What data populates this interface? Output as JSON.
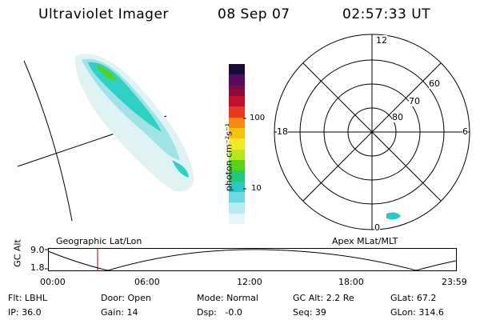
{
  "header": {
    "instrument": "Ultraviolet Imager",
    "date": "08 Sep 07",
    "time": "02:57:33 UT"
  },
  "colorbar": {
    "unit_label": "photon cm⁻²s⁻¹",
    "ticks": [
      "100",
      "10"
    ],
    "colors": [
      "#1a0b3a",
      "#5a0a5e",
      "#8a0a3a",
      "#c0102a",
      "#e63a1a",
      "#f58a10",
      "#f7c20c",
      "#f1ea24",
      "#b6e61d",
      "#55d317",
      "#21c97d",
      "#28c8c8",
      "#71d8e1",
      "#b8eaf0",
      "#e6f6f7"
    ]
  },
  "polar": {
    "mlt_labels": {
      "top": "12",
      "left": "18",
      "right": "6",
      "bottom": "0"
    },
    "lat_labels": [
      "60",
      "70",
      "80"
    ]
  },
  "timeline": {
    "left_title": "Geographic Lat/Lon",
    "right_title": "Apex MLat/MLT",
    "y_axis_label": "GC Alt",
    "y_ticks": [
      "9.0",
      "1.8"
    ],
    "x_ticks": [
      "00:00",
      "06:00",
      "12:00",
      "18:00",
      "23:59"
    ],
    "marker_color": "#b00000"
  },
  "info": {
    "row1": {
      "filter": "Flt: LBHL",
      "door": "Door: Open",
      "mode": "Mode: Normal",
      "gc_alt": "GC Alt: 2.2 Re",
      "glat": "GLat: 67.2"
    },
    "row2": {
      "ip": "IP: 36.0",
      "gain": "Gain: 14",
      "dsp": "Dsp:   -0.0",
      "seq": "Seq: 39",
      "glon": "GLon: 314.6"
    }
  }
}
